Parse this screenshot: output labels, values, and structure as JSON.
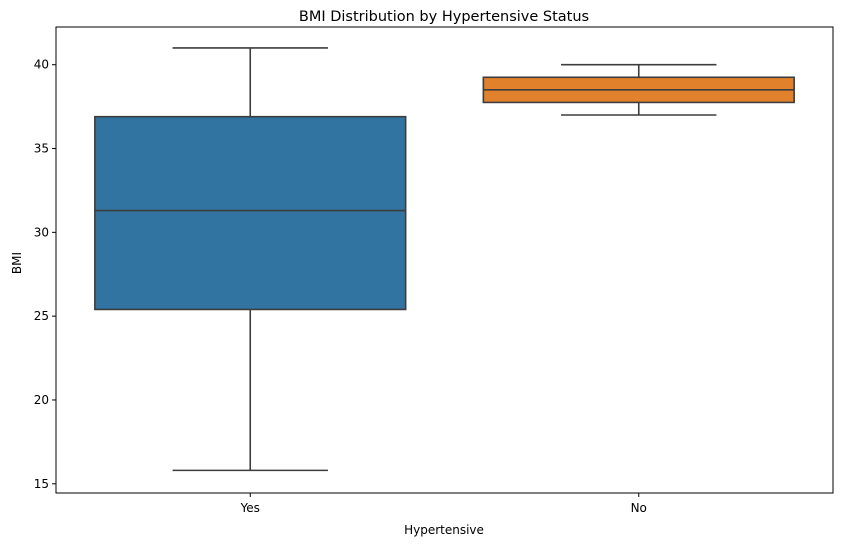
{
  "chart_data": {
    "type": "box",
    "title": "BMI Distribution by Hypertensive Status",
    "xlabel": "Hypertensive",
    "ylabel": "BMI",
    "ylim": [
      14.45,
      42.25
    ],
    "yticks": [
      15,
      20,
      25,
      30,
      35,
      40
    ],
    "grid": false,
    "categories": [
      "Yes",
      "No"
    ],
    "boxes": [
      {
        "category": "Yes",
        "whisker_low": 15.8,
        "q1": 25.4,
        "median": 31.3,
        "q3": 36.9,
        "whisker_high": 41.0,
        "color": "#3274a1"
      },
      {
        "category": "No",
        "whisker_low": 37.0,
        "q1": 37.75,
        "median": 38.5,
        "q3": 39.25,
        "whisker_high": 40.0,
        "color": "#e1812c"
      }
    ],
    "line_color": "#3d3d3d"
  }
}
